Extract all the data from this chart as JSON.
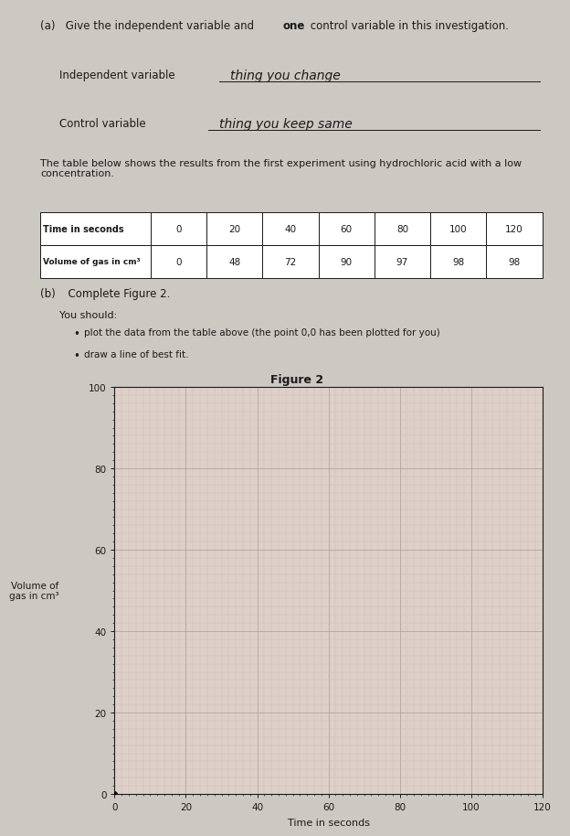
{
  "page_bg": "#ccc8c2",
  "text_color": "#1a1a1a",
  "part_a_label_bold": "(a)",
  "part_a_label_rest": "  Give the independent variable and ",
  "part_a_bold_word": "one",
  "part_a_label_end": " control variable in this investigation.",
  "indep_label": "Independent variable",
  "indep_answer": "thing you change",
  "control_label": "Control variable",
  "control_answer": "thing you keep same",
  "table_intro": "The table below shows the results from the first experiment using hydrochloric acid with a low\nconcentration.",
  "table_headers": [
    "Time in seconds",
    "0",
    "20",
    "40",
    "60",
    "80",
    "100",
    "120"
  ],
  "table_row2_label": "Volume of gas in cm³",
  "table_row2_values": [
    "0",
    "48",
    "72",
    "90",
    "97",
    "98",
    "98"
  ],
  "part_b_label": "(b)",
  "part_b_rest": "  Complete Figure 2.",
  "instr1": "plot the data from the table above (the point 0,0 has been plotted for you)",
  "instr2": "draw a line of best fit.",
  "figure_title": "Figure 2",
  "x_data": [
    0
  ],
  "y_data": [
    0
  ],
  "x_label": "Time in seconds",
  "y_label": "Volume of\ngas in cm³",
  "x_ticks": [
    0,
    20,
    40,
    60,
    80,
    100,
    120
  ],
  "y_ticks": [
    0,
    20,
    40,
    60,
    80,
    100
  ],
  "x_lim": [
    0,
    120
  ],
  "y_lim": [
    0,
    100
  ],
  "grid_major_color": "#b0a098",
  "grid_minor_color": "#c8b8b0",
  "plot_bg": "#ddd0c8",
  "marker_color": "#111111",
  "marker_size": 4
}
